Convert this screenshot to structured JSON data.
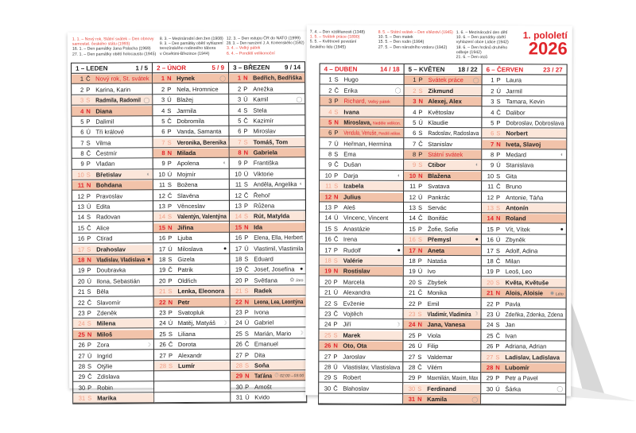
{
  "title": {
    "line1": "1. pololetí",
    "line2": "2026"
  },
  "notes": [
    {
      "lines": [
        {
          "t": "1. 1. – Nový rok, Státní svátek – Den obnovy",
          "red": true
        },
        {
          "t": "samostat. českého státu (1993)",
          "red": true
        },
        {
          "t": "16. 1. – Den památky Jana Palacha (1969)"
        },
        {
          "t": "27. 1. – Den památky obětí holocaustu (1945)"
        }
      ]
    },
    {
      "lines": [
        {
          "t": "8. 3. – Mezinárodní den žen (1908)"
        },
        {
          "t": "9. 3. – Den památky obětí vyhlazení"
        },
        {
          "t": "terezínského rodinného tábora"
        },
        {
          "t": "v Osvětimi-Březince (1944)"
        }
      ]
    },
    {
      "lines": [
        {
          "t": "12. 3. – Den vstupu ČR do NATO (1999)"
        },
        {
          "t": "28. 3. – Den narození J. A. Komenského (1592)"
        },
        {
          "t": "3. 4. – Velký pátek",
          "red": true
        },
        {
          "t": "6. 4. – Pondělí velikonoční",
          "red": true
        }
      ]
    },
    {
      "lines": [
        {
          "t": "7. 4. – Den vzdělanosti (1348)"
        },
        {
          "t": "1. 5. – Svátek práce (1890)",
          "red": true
        },
        {
          "t": "5. 5. – Květnové povstání"
        },
        {
          "t": "českého lidu (1945)"
        }
      ]
    },
    {
      "lines": [
        {
          "t": "8. 5. – Státní svátek – Den vítězství (1945)",
          "red": true
        },
        {
          "t": "10. 5. – Den matek"
        },
        {
          "t": "15. 5. – Den rodin (1994)"
        },
        {
          "t": "27. 5. – Den národního vzdoru (1942)"
        }
      ]
    },
    {
      "lines": [
        {
          "t": "1. 6. – Mezinárodní den dětí"
        },
        {
          "t": "10. 6. – Den památky obětí vyhlazení obce Lidice (1942)"
        },
        {
          "t": "18. 6. – Den hrdinů druhého odboje (1942)"
        },
        {
          "t": "21. 6. – Den otců"
        }
      ]
    }
  ],
  "colors": {
    "accent": "#e0242a",
    "sunday_bg": "#f2c3aa",
    "saturday_bg": "#fbe6da"
  },
  "months": [
    {
      "name": "1 – LEDEN",
      "weeks": "1 / 5",
      "red": false,
      "days": [
        {
          "w": "Č",
          "n": "Nový rok, St. svátek",
          "t": "hol"
        },
        {
          "w": "P",
          "n": "Karina, Karin"
        },
        {
          "w": "S",
          "n": "Radmila, Radomil",
          "t": "sat",
          "i": "full-moon"
        },
        {
          "w": "N",
          "n": "Diana",
          "t": "sun"
        },
        {
          "w": "P",
          "n": "Dalimil"
        },
        {
          "w": "Ú",
          "n": "Tři králové"
        },
        {
          "w": "S",
          "n": "Vilma"
        },
        {
          "w": "Č",
          "n": "Čestmír"
        },
        {
          "w": "P",
          "n": "Vladan"
        },
        {
          "w": "S",
          "n": "Břetislav",
          "t": "sat",
          "i": "last-quarter-moon"
        },
        {
          "w": "N",
          "n": "Bohdana",
          "t": "sun"
        },
        {
          "w": "P",
          "n": "Pravoslav"
        },
        {
          "w": "Ú",
          "n": "Edita"
        },
        {
          "w": "S",
          "n": "Radovan"
        },
        {
          "w": "Č",
          "n": "Alice"
        },
        {
          "w": "P",
          "n": "Ctirad"
        },
        {
          "w": "S",
          "n": "Drahoslav",
          "t": "sat"
        },
        {
          "w": "N",
          "n": "Vladislav, Vladislava",
          "t": "sun",
          "i": "new-moon"
        },
        {
          "w": "P",
          "n": "Doubravka"
        },
        {
          "w": "Ú",
          "n": "Ilona, Sebastián"
        },
        {
          "w": "S",
          "n": "Běla"
        },
        {
          "w": "Č",
          "n": "Slavomír"
        },
        {
          "w": "P",
          "n": "Zdeněk"
        },
        {
          "w": "S",
          "n": "Milena",
          "t": "sat"
        },
        {
          "w": "N",
          "n": "Miloš",
          "t": "sun"
        },
        {
          "w": "P",
          "n": "Zora",
          "i": "first-quarter-moon"
        },
        {
          "w": "Ú",
          "n": "Ingrid"
        },
        {
          "w": "S",
          "n": "Otýlie"
        },
        {
          "w": "Č",
          "n": "Zdislava"
        },
        {
          "w": "P",
          "n": "Robin"
        },
        {
          "w": "S",
          "n": "Marika",
          "t": "sat"
        }
      ]
    },
    {
      "name": "2 – ÚNOR",
      "weeks": "5 / 9",
      "red": true,
      "days": [
        {
          "w": "N",
          "n": "Hynek",
          "t": "sun",
          "i": "full-moon"
        },
        {
          "w": "P",
          "n": "Nela, Hromnice"
        },
        {
          "w": "Ú",
          "n": "Blažej"
        },
        {
          "w": "S",
          "n": "Jarmila"
        },
        {
          "w": "Č",
          "n": "Dobromila"
        },
        {
          "w": "P",
          "n": "Vanda, Samanta"
        },
        {
          "w": "S",
          "n": "Veronika, Berenika",
          "t": "sat"
        },
        {
          "w": "N",
          "n": "Milada",
          "t": "sun"
        },
        {
          "w": "P",
          "n": "Apolena",
          "i": "last-quarter-moon"
        },
        {
          "w": "Ú",
          "n": "Mojmír"
        },
        {
          "w": "S",
          "n": "Božena"
        },
        {
          "w": "Č",
          "n": "Slavěna"
        },
        {
          "w": "P",
          "n": "Věnceslav"
        },
        {
          "w": "S",
          "n": "Valentýn, Valentýna",
          "t": "sat"
        },
        {
          "w": "N",
          "n": "Jiřina",
          "t": "sun"
        },
        {
          "w": "P",
          "n": "Ljuba"
        },
        {
          "w": "Ú",
          "n": "Miloslava",
          "i": "new-moon"
        },
        {
          "w": "S",
          "n": "Gizela"
        },
        {
          "w": "Č",
          "n": "Patrik"
        },
        {
          "w": "P",
          "n": "Oldřich"
        },
        {
          "w": "S",
          "n": "Lenka, Eleonora",
          "t": "sat"
        },
        {
          "w": "N",
          "n": "Petr",
          "t": "sun"
        },
        {
          "w": "P",
          "n": "Svatopluk"
        },
        {
          "w": "Ú",
          "n": "Matěj, Matyáš",
          "i": "first-quarter-moon"
        },
        {
          "w": "S",
          "n": "Liliana"
        },
        {
          "w": "Č",
          "n": "Dorota"
        },
        {
          "w": "P",
          "n": "Alexandr"
        },
        {
          "w": "S",
          "n": "Lumír",
          "t": "sat"
        }
      ]
    },
    {
      "name": "3 – BŘEZEN",
      "weeks": "9 / 14",
      "red": false,
      "days": [
        {
          "w": "N",
          "n": "Bedřich, Bedřiška",
          "t": "sun"
        },
        {
          "w": "P",
          "n": "Anežka"
        },
        {
          "w": "Ú",
          "n": "Kamil",
          "i": "full-moon"
        },
        {
          "w": "S",
          "n": "Stela"
        },
        {
          "w": "Č",
          "n": "Kazimír"
        },
        {
          "w": "P",
          "n": "Miroslav"
        },
        {
          "w": "S",
          "n": "Tomáš, Tom",
          "t": "sat"
        },
        {
          "w": "N",
          "n": "Gabriela",
          "t": "sun"
        },
        {
          "w": "P",
          "n": "Františka"
        },
        {
          "w": "Ú",
          "n": "Viktorie"
        },
        {
          "w": "S",
          "n": "Anděla, Angelika",
          "i": "last-quarter-moon"
        },
        {
          "w": "Č",
          "n": "Řehoř"
        },
        {
          "w": "P",
          "n": "Růžena"
        },
        {
          "w": "S",
          "n": "Rút, Matylda",
          "t": "sat"
        },
        {
          "w": "N",
          "n": "Ida",
          "t": "sun"
        },
        {
          "w": "P",
          "n": "Elena, Ella, Herbert"
        },
        {
          "w": "Ú",
          "n": "Vlastimil, Vlastimila"
        },
        {
          "w": "S",
          "n": "Eduard"
        },
        {
          "w": "Č",
          "n": "Josef, Josefína",
          "i": "new-moon"
        },
        {
          "w": "P",
          "n": "Světlana",
          "i": "spring-icon",
          "lbl": "Jaro"
        },
        {
          "w": "S",
          "n": "Radek",
          "t": "sat"
        },
        {
          "w": "N",
          "n": "Leona, Lea, Leontýna",
          "t": "sun"
        },
        {
          "w": "P",
          "n": "Ivona"
        },
        {
          "w": "Ú",
          "n": "Gabriel"
        },
        {
          "w": "S",
          "n": "Marián, Mario",
          "i": "first-quarter-moon"
        },
        {
          "w": "Č",
          "n": "Emanuel"
        },
        {
          "w": "P",
          "n": "Dita"
        },
        {
          "w": "S",
          "n": "Soňa",
          "t": "sat"
        },
        {
          "w": "N",
          "n": "Taťána",
          "t": "sun",
          "i": "time-change-icon",
          "lbl": "02:00→03:00"
        },
        {
          "w": "P",
          "n": "Amošt"
        },
        {
          "w": "Ú",
          "n": "Kvido"
        }
      ]
    },
    {
      "name": "4 – DUBEN",
      "weeks": "14 / 18",
      "red": true,
      "days": [
        {
          "w": "S",
          "n": "Hugo"
        },
        {
          "w": "Č",
          "n": "Erika",
          "i": "full-moon"
        },
        {
          "w": "P",
          "n": "Richard,",
          "note": "Velký pátek",
          "t": "hol"
        },
        {
          "w": "S",
          "n": "Ivana",
          "t": "sat"
        },
        {
          "w": "N",
          "n": "Miroslava,",
          "note": "Neděle velikon.",
          "t": "sun"
        },
        {
          "w": "P",
          "n": "Vendula, Venuše,",
          "note": "Pondělí velikon.",
          "t": "hol"
        },
        {
          "w": "Ú",
          "n": "Heřman, Hermína"
        },
        {
          "w": "S",
          "n": "Ema"
        },
        {
          "w": "Č",
          "n": "Dušan"
        },
        {
          "w": "P",
          "n": "Darja",
          "i": "last-quarter-moon"
        },
        {
          "w": "S",
          "n": "Izabela",
          "t": "sat"
        },
        {
          "w": "N",
          "n": "Julius",
          "t": "sun"
        },
        {
          "w": "P",
          "n": "Aleš"
        },
        {
          "w": "Ú",
          "n": "Vincenc, Vincent"
        },
        {
          "w": "S",
          "n": "Anastázie"
        },
        {
          "w": "Č",
          "n": "Irena"
        },
        {
          "w": "P",
          "n": "Rudolf",
          "i": "new-moon"
        },
        {
          "w": "S",
          "n": "Valérie",
          "t": "sat"
        },
        {
          "w": "N",
          "n": "Rostislav",
          "t": "sun"
        },
        {
          "w": "P",
          "n": "Marcela"
        },
        {
          "w": "Ú",
          "n": "Alexandra"
        },
        {
          "w": "S",
          "n": "Evženie"
        },
        {
          "w": "Č",
          "n": "Vojtěch"
        },
        {
          "w": "P",
          "n": "Jiří",
          "i": "first-quarter-moon"
        },
        {
          "w": "S",
          "n": "Marek",
          "t": "sat"
        },
        {
          "w": "N",
          "n": "Oto, Ota",
          "t": "sun"
        },
        {
          "w": "P",
          "n": "Jaroslav"
        },
        {
          "w": "Ú",
          "n": "Vlastislav, Vlastislava"
        },
        {
          "w": "S",
          "n": "Robert"
        },
        {
          "w": "Č",
          "n": "Blahoslav"
        }
      ]
    },
    {
      "name": "5 – KVĚTEN",
      "weeks": "18 / 22",
      "red": false,
      "days": [
        {
          "w": "P",
          "n": "Svátek práce",
          "t": "hol",
          "i": "full-moon"
        },
        {
          "w": "S",
          "n": "Zikmund",
          "t": "sat"
        },
        {
          "w": "N",
          "n": "Alexej, Alex",
          "t": "sun"
        },
        {
          "w": "P",
          "n": "Květoslav"
        },
        {
          "w": "Ú",
          "n": "Klaudie"
        },
        {
          "w": "S",
          "n": "Radoslav, Radoslava"
        },
        {
          "w": "Č",
          "n": "Stanislav"
        },
        {
          "w": "P",
          "n": "Státní svátek",
          "t": "hol"
        },
        {
          "w": "S",
          "n": "Ctibor",
          "t": "sat",
          "i": "last-quarter-moon"
        },
        {
          "w": "N",
          "n": "Blažena",
          "t": "sun"
        },
        {
          "w": "P",
          "n": "Svatava"
        },
        {
          "w": "Ú",
          "n": "Pankrác"
        },
        {
          "w": "S",
          "n": "Servác"
        },
        {
          "w": "Č",
          "n": "Bonifác"
        },
        {
          "w": "P",
          "n": "Žofie, Sofie"
        },
        {
          "w": "S",
          "n": "Přemysl",
          "t": "sat",
          "i": "new-moon"
        },
        {
          "w": "N",
          "n": "Aneta",
          "t": "sun"
        },
        {
          "w": "P",
          "n": "Nataša"
        },
        {
          "w": "Ú",
          "n": "Ivo"
        },
        {
          "w": "S",
          "n": "Zbyšek"
        },
        {
          "w": "Č",
          "n": "Monika"
        },
        {
          "w": "P",
          "n": "Emil"
        },
        {
          "w": "S",
          "n": "Vladimír, Vladimíra",
          "t": "sat",
          "i": "first-quarter-moon"
        },
        {
          "w": "N",
          "n": "Jana, Vanesa",
          "t": "sun"
        },
        {
          "w": "P",
          "n": "Viola"
        },
        {
          "w": "Ú",
          "n": "Filip"
        },
        {
          "w": "S",
          "n": "Valdemar"
        },
        {
          "w": "Č",
          "n": "Vilém"
        },
        {
          "w": "P",
          "n": "Maxmilián, Maxim, Max"
        },
        {
          "w": "S",
          "n": "Ferdinand",
          "t": "sat"
        },
        {
          "w": "N",
          "n": "Kamila",
          "t": "sun",
          "i": "full-moon"
        }
      ]
    },
    {
      "name": "6 – ČERVEN",
      "weeks": "23 / 27",
      "red": true,
      "days": [
        {
          "w": "P",
          "n": "Laura"
        },
        {
          "w": "Ú",
          "n": "Jarmil"
        },
        {
          "w": "S",
          "n": "Tamara, Kevin"
        },
        {
          "w": "Č",
          "n": "Dalibor"
        },
        {
          "w": "P",
          "n": "Dobroslav, Dobroslava"
        },
        {
          "w": "S",
          "n": "Norbert",
          "t": "sat"
        },
        {
          "w": "N",
          "n": "Iveta, Slavoj",
          "t": "sun"
        },
        {
          "w": "P",
          "n": "Medard",
          "i": "last-quarter-moon"
        },
        {
          "w": "Ú",
          "n": "Stanislava"
        },
        {
          "w": "S",
          "n": "Gita"
        },
        {
          "w": "Č",
          "n": "Bruno"
        },
        {
          "w": "P",
          "n": "Antonie, Táňa"
        },
        {
          "w": "S",
          "n": "Antonín",
          "t": "sat"
        },
        {
          "w": "N",
          "n": "Roland",
          "t": "sun"
        },
        {
          "w": "P",
          "n": "Vít, Vítek",
          "i": "new-moon"
        },
        {
          "w": "Ú",
          "n": "Zbyněk"
        },
        {
          "w": "S",
          "n": "Adolf, Adina"
        },
        {
          "w": "Č",
          "n": "Milan"
        },
        {
          "w": "P",
          "n": "Leoš, Leo"
        },
        {
          "w": "S",
          "n": "Květa, Květuše",
          "t": "sat"
        },
        {
          "w": "N",
          "n": "Alois, Aloisie",
          "t": "sun",
          "i": "summer-sun-icon",
          "lbl": "Léto"
        },
        {
          "w": "P",
          "n": "Pavla"
        },
        {
          "w": "Ú",
          "n": "Zdeňka, Zdenka, Zdena"
        },
        {
          "w": "S",
          "n": "Jan"
        },
        {
          "w": "Č",
          "n": "Ivan"
        },
        {
          "w": "P",
          "n": "Adriana, Adrian"
        },
        {
          "w": "S",
          "n": "Ladislav, Ladislava",
          "t": "sat"
        },
        {
          "w": "N",
          "n": "Lubomír",
          "t": "sun"
        },
        {
          "w": "P",
          "n": "Petr a Pavel"
        },
        {
          "w": "Ú",
          "n": "Šárka",
          "i": "full-moon"
        }
      ]
    }
  ]
}
